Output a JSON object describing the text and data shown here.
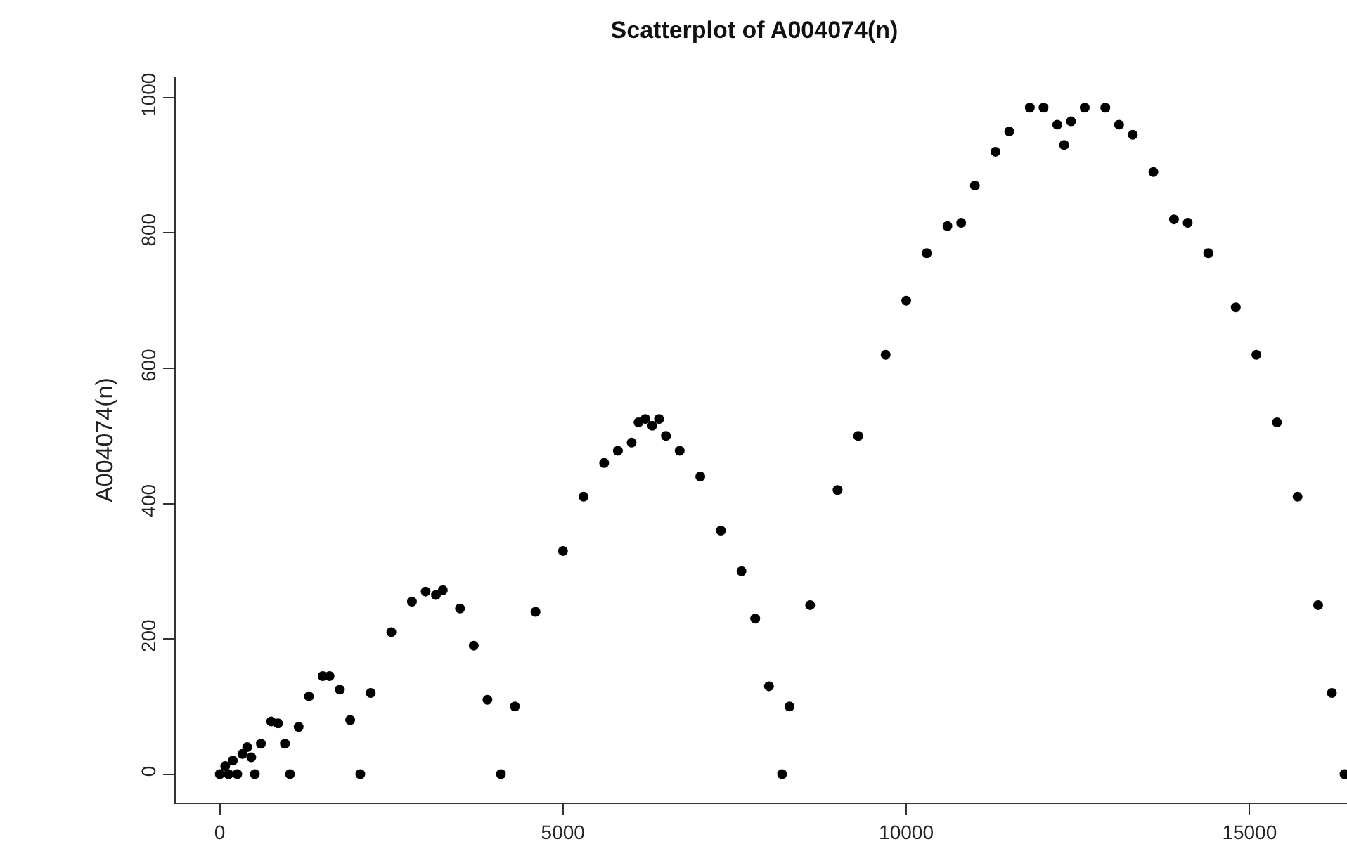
{
  "chart_data": {
    "type": "scatter",
    "title": "Scatterplot of A004074(n)",
    "ylabel": "A004074(n)",
    "xlim": [
      -640,
      16420
    ],
    "ylim": [
      -42,
      1030
    ],
    "xticks": [
      0,
      5000,
      10000,
      15000
    ],
    "yticks": [
      0,
      200,
      400,
      600,
      800,
      1000
    ],
    "marker": "circle",
    "series": [
      {
        "color": "#000000",
        "x": [
          1,
          80,
          128,
          190,
          256,
          330,
          400,
          460,
          512,
          600,
          750,
          850,
          950,
          1024,
          1150,
          1300,
          1500,
          1600,
          1750,
          1900,
          2048,
          2200,
          2500,
          2800,
          3000,
          3150,
          3250,
          3500,
          3700,
          3900,
          4096,
          4300,
          4600,
          5000,
          5300,
          5600,
          5800,
          6000,
          6100,
          6200,
          6300,
          6400,
          6500,
          6700,
          7000,
          7300,
          7600,
          7800,
          8000,
          8192,
          8300,
          8600,
          9000,
          9300,
          9700,
          10000,
          10300,
          10600,
          10800,
          11000,
          11300,
          11500,
          11800,
          12000,
          12200,
          12300,
          12400,
          12600,
          12900,
          13100,
          13300,
          13600,
          13900,
          14100,
          14400,
          14800,
          15100,
          15400,
          15700,
          16000,
          16200,
          16384
        ],
        "values": [
          0,
          12,
          0,
          20,
          0,
          30,
          40,
          25,
          0,
          45,
          78,
          75,
          45,
          0,
          70,
          115,
          145,
          145,
          125,
          80,
          0,
          120,
          210,
          255,
          270,
          265,
          272,
          245,
          190,
          110,
          0,
          100,
          240,
          330,
          410,
          460,
          478,
          490,
          520,
          525,
          515,
          525,
          500,
          478,
          440,
          360,
          300,
          230,
          130,
          0,
          100,
          250,
          420,
          500,
          620,
          700,
          770,
          810,
          815,
          870,
          920,
          950,
          985,
          985,
          960,
          930,
          965,
          985,
          985,
          960,
          945,
          890,
          820,
          815,
          770,
          690,
          620,
          520,
          410,
          250,
          120,
          0
        ]
      }
    ]
  }
}
